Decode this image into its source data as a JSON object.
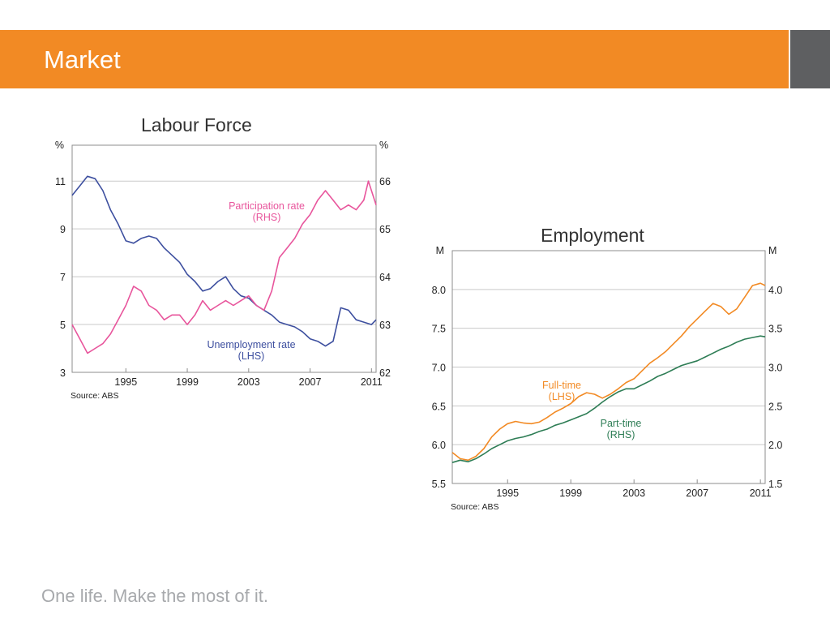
{
  "slide": {
    "title": "Market",
    "footer": "One life. Make the most of it.",
    "colors": {
      "banner": "#f28a24",
      "banner_side": "#5e5f61"
    }
  },
  "chart_data": [
    {
      "type": "line",
      "title": "Labour Force",
      "source": "Source: ABS",
      "x_ticks": [
        "1995",
        "1999",
        "2003",
        "2007",
        "2011"
      ],
      "xlim": [
        1991.5,
        2011.3
      ],
      "left_axis": {
        "unit": "%",
        "ylim": [
          3,
          12.5
        ],
        "ticks": [
          "3",
          "5",
          "7",
          "9",
          "11"
        ]
      },
      "right_axis": {
        "unit": "%",
        "ylim": [
          62,
          66.75
        ],
        "ticks": [
          "62",
          "63",
          "64",
          "65",
          "66"
        ]
      },
      "grid": true,
      "series": [
        {
          "name": "Unemployment rate",
          "label_lines": [
            "Unemployment rate",
            "(LHS)"
          ],
          "axis": "left",
          "color": "#3d4f9f",
          "points": [
            [
              1991.5,
              10.4
            ],
            [
              1992,
              10.8
            ],
            [
              1992.5,
              11.2
            ],
            [
              1993,
              11.1
            ],
            [
              1993.5,
              10.6
            ],
            [
              1994,
              9.8
            ],
            [
              1994.5,
              9.2
            ],
            [
              1995,
              8.5
            ],
            [
              1995.5,
              8.4
            ],
            [
              1996,
              8.6
            ],
            [
              1996.5,
              8.7
            ],
            [
              1997,
              8.6
            ],
            [
              1997.5,
              8.2
            ],
            [
              1998,
              7.9
            ],
            [
              1998.5,
              7.6
            ],
            [
              1999,
              7.1
            ],
            [
              1999.5,
              6.8
            ],
            [
              2000,
              6.4
            ],
            [
              2000.5,
              6.5
            ],
            [
              2001,
              6.8
            ],
            [
              2001.5,
              7.0
            ],
            [
              2002,
              6.5
            ],
            [
              2002.5,
              6.2
            ],
            [
              2003,
              6.1
            ],
            [
              2003.5,
              5.8
            ],
            [
              2004,
              5.6
            ],
            [
              2004.5,
              5.4
            ],
            [
              2005,
              5.1
            ],
            [
              2005.5,
              5.0
            ],
            [
              2006,
              4.9
            ],
            [
              2006.5,
              4.7
            ],
            [
              2007,
              4.4
            ],
            [
              2007.5,
              4.3
            ],
            [
              2008,
              4.1
            ],
            [
              2008.5,
              4.3
            ],
            [
              2009,
              5.7
            ],
            [
              2009.5,
              5.6
            ],
            [
              2010,
              5.2
            ],
            [
              2010.5,
              5.1
            ],
            [
              2011,
              5.0
            ],
            [
              2011.3,
              5.2
            ]
          ]
        },
        {
          "name": "Participation rate",
          "label_lines": [
            "Participation rate",
            "(RHS)"
          ],
          "axis": "right",
          "color": "#e8559c",
          "points": [
            [
              1991.5,
              63.0
            ],
            [
              1992,
              62.7
            ],
            [
              1992.5,
              62.4
            ],
            [
              1993,
              62.5
            ],
            [
              1993.5,
              62.6
            ],
            [
              1994,
              62.8
            ],
            [
              1994.5,
              63.1
            ],
            [
              1995,
              63.4
            ],
            [
              1995.5,
              63.8
            ],
            [
              1996,
              63.7
            ],
            [
              1996.5,
              63.4
            ],
            [
              1997,
              63.3
            ],
            [
              1997.5,
              63.1
            ],
            [
              1998,
              63.2
            ],
            [
              1998.5,
              63.2
            ],
            [
              1999,
              63.0
            ],
            [
              1999.5,
              63.2
            ],
            [
              2000,
              63.5
            ],
            [
              2000.5,
              63.3
            ],
            [
              2001,
              63.4
            ],
            [
              2001.5,
              63.5
            ],
            [
              2002,
              63.4
            ],
            [
              2002.5,
              63.5
            ],
            [
              2003,
              63.6
            ],
            [
              2003.5,
              63.4
            ],
            [
              2004,
              63.3
            ],
            [
              2004.5,
              63.7
            ],
            [
              2005,
              64.4
            ],
            [
              2005.5,
              64.6
            ],
            [
              2006,
              64.8
            ],
            [
              2006.5,
              65.1
            ],
            [
              2007,
              65.3
            ],
            [
              2007.5,
              65.6
            ],
            [
              2008,
              65.8
            ],
            [
              2008.5,
              65.6
            ],
            [
              2009,
              65.4
            ],
            [
              2009.5,
              65.5
            ],
            [
              2010,
              65.4
            ],
            [
              2010.5,
              65.6
            ],
            [
              2010.8,
              66.0
            ],
            [
              2011,
              65.8
            ],
            [
              2011.3,
              65.5
            ]
          ]
        }
      ]
    },
    {
      "type": "line",
      "title": "Employment",
      "source": "Source: ABS",
      "x_ticks": [
        "1995",
        "1999",
        "2003",
        "2007",
        "2011"
      ],
      "xlim": [
        1991.5,
        2011.3
      ],
      "left_axis": {
        "unit": "M",
        "ylim": [
          5.5,
          8.5
        ],
        "ticks": [
          "5.5",
          "6.0",
          "6.5",
          "7.0",
          "7.5",
          "8.0"
        ]
      },
      "right_axis": {
        "unit": "M",
        "ylim": [
          1.5,
          4.5
        ],
        "ticks": [
          "1.5",
          "2.0",
          "2.5",
          "3.0",
          "3.5",
          "4.0"
        ]
      },
      "grid": true,
      "series": [
        {
          "name": "Full-time",
          "label_lines": [
            "Full-time",
            "(LHS)"
          ],
          "axis": "left",
          "color": "#f28a24",
          "points": [
            [
              1991.5,
              5.9
            ],
            [
              1992,
              5.82
            ],
            [
              1992.5,
              5.8
            ],
            [
              1993,
              5.85
            ],
            [
              1993.5,
              5.95
            ],
            [
              1994,
              6.1
            ],
            [
              1994.5,
              6.2
            ],
            [
              1995,
              6.27
            ],
            [
              1995.5,
              6.3
            ],
            [
              1996,
              6.28
            ],
            [
              1996.5,
              6.27
            ],
            [
              1997,
              6.29
            ],
            [
              1997.5,
              6.35
            ],
            [
              1998,
              6.42
            ],
            [
              1998.5,
              6.47
            ],
            [
              1999,
              6.53
            ],
            [
              1999.5,
              6.62
            ],
            [
              2000,
              6.67
            ],
            [
              2000.5,
              6.65
            ],
            [
              2001,
              6.6
            ],
            [
              2001.5,
              6.65
            ],
            [
              2002,
              6.72
            ],
            [
              2002.5,
              6.8
            ],
            [
              2003,
              6.85
            ],
            [
              2003.5,
              6.95
            ],
            [
              2004,
              7.05
            ],
            [
              2004.5,
              7.12
            ],
            [
              2005,
              7.2
            ],
            [
              2005.5,
              7.3
            ],
            [
              2006,
              7.4
            ],
            [
              2006.5,
              7.52
            ],
            [
              2007,
              7.62
            ],
            [
              2007.5,
              7.72
            ],
            [
              2008,
              7.82
            ],
            [
              2008.5,
              7.78
            ],
            [
              2009,
              7.68
            ],
            [
              2009.5,
              7.75
            ],
            [
              2010,
              7.9
            ],
            [
              2010.5,
              8.05
            ],
            [
              2011,
              8.08
            ],
            [
              2011.3,
              8.05
            ]
          ]
        },
        {
          "name": "Part-time",
          "label_lines": [
            "Part-time",
            "(RHS)"
          ],
          "axis": "right",
          "color": "#2e7d55",
          "points": [
            [
              1991.5,
              1.77
            ],
            [
              1992,
              1.8
            ],
            [
              1992.5,
              1.78
            ],
            [
              1993,
              1.82
            ],
            [
              1993.5,
              1.88
            ],
            [
              1994,
              1.95
            ],
            [
              1994.5,
              2.0
            ],
            [
              1995,
              2.05
            ],
            [
              1995.5,
              2.08
            ],
            [
              1996,
              2.1
            ],
            [
              1996.5,
              2.13
            ],
            [
              1997,
              2.17
            ],
            [
              1997.5,
              2.2
            ],
            [
              1998,
              2.25
            ],
            [
              1998.5,
              2.28
            ],
            [
              1999,
              2.32
            ],
            [
              1999.5,
              2.36
            ],
            [
              2000,
              2.4
            ],
            [
              2000.5,
              2.47
            ],
            [
              2001,
              2.55
            ],
            [
              2001.5,
              2.62
            ],
            [
              2002,
              2.68
            ],
            [
              2002.5,
              2.72
            ],
            [
              2003,
              2.72
            ],
            [
              2003.5,
              2.77
            ],
            [
              2004,
              2.82
            ],
            [
              2004.5,
              2.88
            ],
            [
              2005,
              2.92
            ],
            [
              2005.5,
              2.97
            ],
            [
              2006,
              3.02
            ],
            [
              2006.5,
              3.05
            ],
            [
              2007,
              3.08
            ],
            [
              2007.5,
              3.13
            ],
            [
              2008,
              3.18
            ],
            [
              2008.5,
              3.23
            ],
            [
              2009,
              3.27
            ],
            [
              2009.5,
              3.32
            ],
            [
              2010,
              3.36
            ],
            [
              2010.5,
              3.38
            ],
            [
              2011,
              3.4
            ],
            [
              2011.3,
              3.39
            ]
          ]
        }
      ]
    }
  ]
}
